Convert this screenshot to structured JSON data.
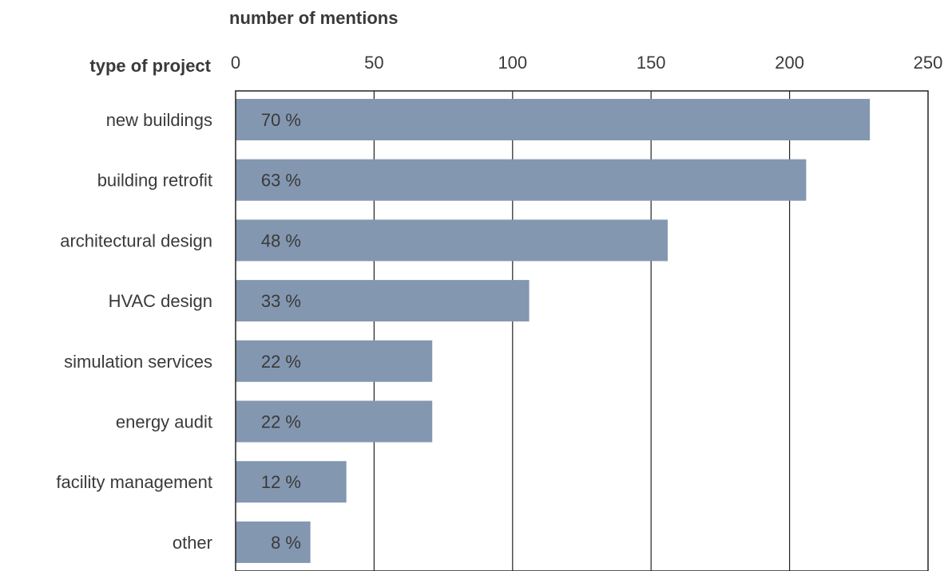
{
  "chart_data": {
    "type": "bar",
    "orientation": "horizontal",
    "title": "",
    "xlabel": "number of mentions",
    "ylabel": "type of project",
    "categories": [
      "new buildings",
      "building retrofit",
      "architectural design",
      "HVAC design",
      "simulation services",
      "energy audit",
      "facility management",
      "other"
    ],
    "values": [
      229,
      206,
      156,
      106,
      71,
      71,
      40,
      27
    ],
    "data_labels": [
      "70 %",
      "63 %",
      "48 %",
      "33 %",
      "22 %",
      "22 %",
      "12 %",
      "8 %"
    ],
    "xlim": [
      0,
      250
    ],
    "x_ticks": [
      0,
      50,
      100,
      150,
      200,
      250
    ],
    "x_tick_labels": [
      "0",
      "50",
      "100",
      "150",
      "200",
      "250"
    ],
    "x_axis_position": "top",
    "grid": true,
    "legend": "none",
    "bar_color": "#8497b0"
  }
}
